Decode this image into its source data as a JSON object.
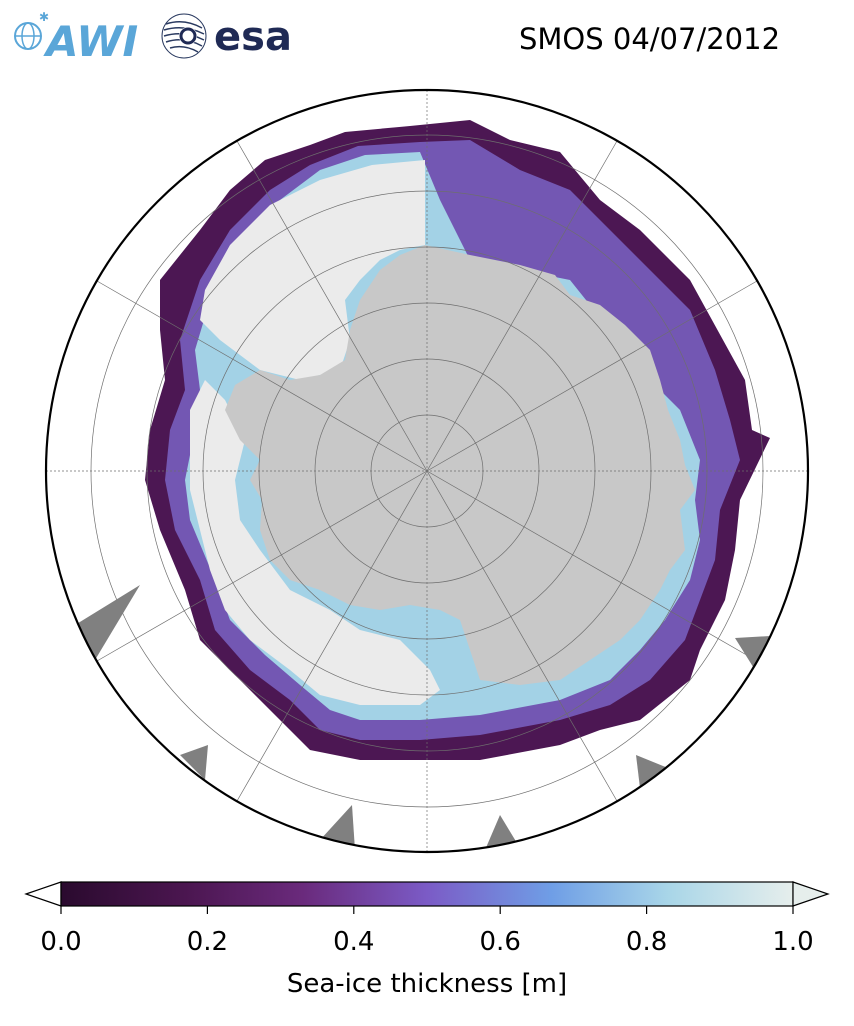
{
  "title": "SMOS 04/07/2012",
  "logos": {
    "awi_text": "AWI",
    "esa_text": "esa"
  },
  "colorbar": {
    "label": "Sea-ice thickness [m]",
    "ticks": [
      "0.0",
      "0.2",
      "0.4",
      "0.6",
      "0.8",
      "1.0"
    ],
    "min": 0.0,
    "max": 1.0,
    "extend": "both",
    "colormap": [
      "#2a0a2e",
      "#4b1650",
      "#6a2a7c",
      "#7b5bc6",
      "#6f9ee6",
      "#a9d6e8",
      "#e6eeec"
    ]
  },
  "map": {
    "projection": "south-polar-stereographic",
    "ocean_color": "#ffffff",
    "land_color": "#c8c8c8",
    "thick_ice_color": "#ebebeb",
    "no_data_color": "#808080",
    "graticule": true
  }
}
